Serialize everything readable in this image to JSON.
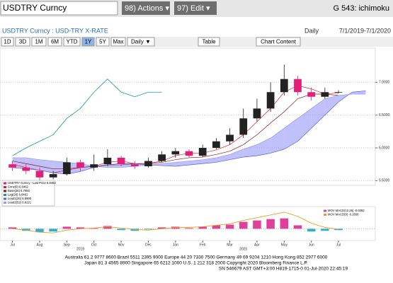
{
  "toolbar": {
    "security": "USDTRY Curncy",
    "actions": "98) Actions ▾",
    "edit": "97) Edit ▾",
    "function": "G 543: ichimoku"
  },
  "header": {
    "description": "USDTRY Curncy : USD-TRY X-RATE",
    "period": "Daily",
    "range": "7/1/2019-7/1/2020"
  },
  "buttons": [
    "1D",
    "3D",
    "1M",
    "6M",
    "YTD",
    "1Y",
    "5Y",
    "Max",
    "Daily ▼",
    "Table",
    "Chart Content"
  ],
  "footer": [
    "Australia 61 2 9777 8600 Brazil 5511 2395 9000 Europe 44 20 7330 7500 Germany 49 69 9204 1210 Hong Kong 852 2977 6000",
    "Japan 81 3 4565 8900    Singapore 65 6212 1000    U.S. 1 212 318 2000    Copyright 2020 Bloomberg Finance L.P.",
    "SN 546679 AST GMT+3:00 H819-1715-0 01-Jul-2020 22:45:19"
  ],
  "chart_data": {
    "type": "candlestick",
    "categories": [
      "Jul",
      null,
      "Aug",
      null,
      "Sep",
      null,
      "Oct",
      null,
      "Nov",
      null,
      "Dec",
      null,
      "Jan",
      null,
      "Feb",
      null,
      "Mar",
      null,
      "Apr",
      null,
      "May",
      null,
      "Jun",
      null,
      "Jul",
      null,
      null
    ],
    "years": [
      "2019",
      "2020"
    ],
    "candle_name": "USDTRY Curncy - Last Price 6.8462",
    "up_color": "#222222",
    "down_color": "#e0207a",
    "open": [
      5.75,
      5.7,
      5.65,
      5.55,
      5.6,
      5.78,
      5.7,
      5.75,
      5.85,
      5.75,
      5.72,
      5.8,
      5.9,
      5.95,
      5.88,
      6.0,
      6.1,
      6.2,
      6.45,
      6.6,
      6.85,
      7.05,
      6.85,
      6.78,
      6.85,
      null,
      null
    ],
    "high": [
      5.8,
      5.75,
      5.7,
      5.65,
      5.85,
      5.82,
      5.9,
      5.98,
      5.88,
      5.8,
      5.85,
      5.95,
      6.0,
      5.98,
      6.05,
      6.15,
      6.3,
      6.6,
      6.75,
      7.0,
      7.27,
      7.1,
      6.92,
      6.92,
      6.88,
      null,
      null
    ],
    "low": [
      5.65,
      5.6,
      5.5,
      5.52,
      5.58,
      5.65,
      5.65,
      5.72,
      5.72,
      5.68,
      5.7,
      5.78,
      5.85,
      5.85,
      5.86,
      5.98,
      6.05,
      6.15,
      6.4,
      6.55,
      6.8,
      6.8,
      6.72,
      6.75,
      6.83,
      null,
      null
    ],
    "close": [
      5.7,
      5.65,
      5.55,
      5.6,
      5.78,
      5.7,
      5.75,
      5.85,
      5.75,
      5.72,
      5.8,
      5.9,
      5.95,
      5.88,
      6.0,
      6.1,
      6.2,
      6.45,
      6.6,
      6.85,
      7.05,
      6.85,
      6.78,
      6.85,
      6.85,
      null,
      null
    ],
    "series": [
      {
        "name": "Conv(9) 6.8462",
        "color": "#e0202a",
        "values": [
          5.75,
          5.7,
          5.66,
          5.62,
          5.66,
          5.7,
          5.72,
          5.78,
          5.8,
          5.76,
          5.76,
          5.8,
          5.88,
          5.92,
          5.92,
          5.97,
          6.05,
          6.2,
          6.4,
          6.6,
          6.85,
          6.95,
          6.9,
          6.82,
          6.84,
          null,
          null
        ]
      },
      {
        "name": "Base(26) 6.7950",
        "color": "#8b1a1a",
        "values": [
          5.8,
          5.76,
          5.72,
          5.68,
          5.68,
          5.7,
          5.72,
          5.74,
          5.76,
          5.76,
          5.76,
          5.78,
          5.82,
          5.85,
          5.86,
          5.9,
          5.95,
          6.05,
          6.2,
          6.38,
          6.55,
          6.75,
          6.82,
          6.82,
          6.8,
          null,
          null
        ]
      },
      {
        "name": "Lag(26) 6.8462",
        "color": "#1a9a9a",
        "values": [
          5.88,
          6.0,
          6.1,
          6.2,
          6.45,
          6.6,
          6.85,
          7.05,
          6.85,
          6.78,
          6.85,
          6.85,
          null,
          null,
          null,
          null,
          null,
          null,
          null,
          null,
          null,
          null,
          null,
          null,
          null,
          null,
          null
        ]
      },
      {
        "name": "Lead1(26) 6.8900",
        "color": "#6060e0",
        "values": [
          5.7,
          5.68,
          5.66,
          5.62,
          5.6,
          5.64,
          5.7,
          5.74,
          5.74,
          5.76,
          5.74,
          5.73,
          5.72,
          5.74,
          5.76,
          5.78,
          5.82,
          5.86,
          5.88,
          5.92,
          5.98,
          6.1,
          6.3,
          6.5,
          6.7,
          6.85,
          6.87
        ]
      },
      {
        "name": "Lead2(52) 6.8221",
        "color": "#9a9af0",
        "values": [
          5.85,
          5.85,
          5.82,
          5.8,
          5.78,
          5.76,
          5.72,
          5.7,
          5.7,
          5.72,
          5.74,
          5.76,
          5.78,
          5.8,
          5.82,
          5.85,
          5.9,
          5.98,
          6.05,
          6.15,
          6.3,
          6.45,
          6.6,
          6.75,
          6.8,
          6.82,
          6.82
        ]
      }
    ],
    "cloud_color": "#8c8cf5",
    "ylim": [
      5.45,
      7.5
    ],
    "yticks": [
      {
        "value": 5.5,
        "label": "5.5000"
      },
      {
        "value": 6,
        "label": "6.0000"
      },
      {
        "value": 6.5,
        "label": "6.5000"
      },
      {
        "value": 7,
        "label": "7.0000"
      }
    ],
    "grid": true,
    "macd": {
      "type": "bar",
      "ylim": [
        -0.15,
        0.3
      ],
      "up_color": "#e0409a",
      "down_color": "#30b0d0",
      "series": [
        {
          "name": "MOV MACD(12,26) -0.0382",
          "color": "#e0409a",
          "values": [
            0.02,
            -0.03,
            -0.05,
            -0.04,
            0.03,
            0.02,
            0.01,
            0.04,
            -0.02,
            -0.03,
            -0.01,
            0.02,
            0.03,
            0.01,
            0.03,
            0.05,
            0.06,
            0.1,
            0.12,
            0.14,
            0.15,
            0.05,
            -0.04,
            -0.03,
            -0.02,
            null,
            null
          ]
        },
        {
          "name": "MOV MACD(9) -0.2658",
          "color": "#e8a020",
          "values": [
            0,
            -0.02,
            -0.05,
            -0.06,
            -0.02,
            0,
            0.01,
            0.03,
            0.01,
            -0.01,
            -0.02,
            0,
            0.02,
            0.02,
            0.03,
            0.05,
            0.07,
            0.12,
            0.16,
            0.2,
            0.24,
            0.18,
            0.08,
            0.02,
            -0.01,
            null,
            null
          ]
        }
      ]
    }
  }
}
